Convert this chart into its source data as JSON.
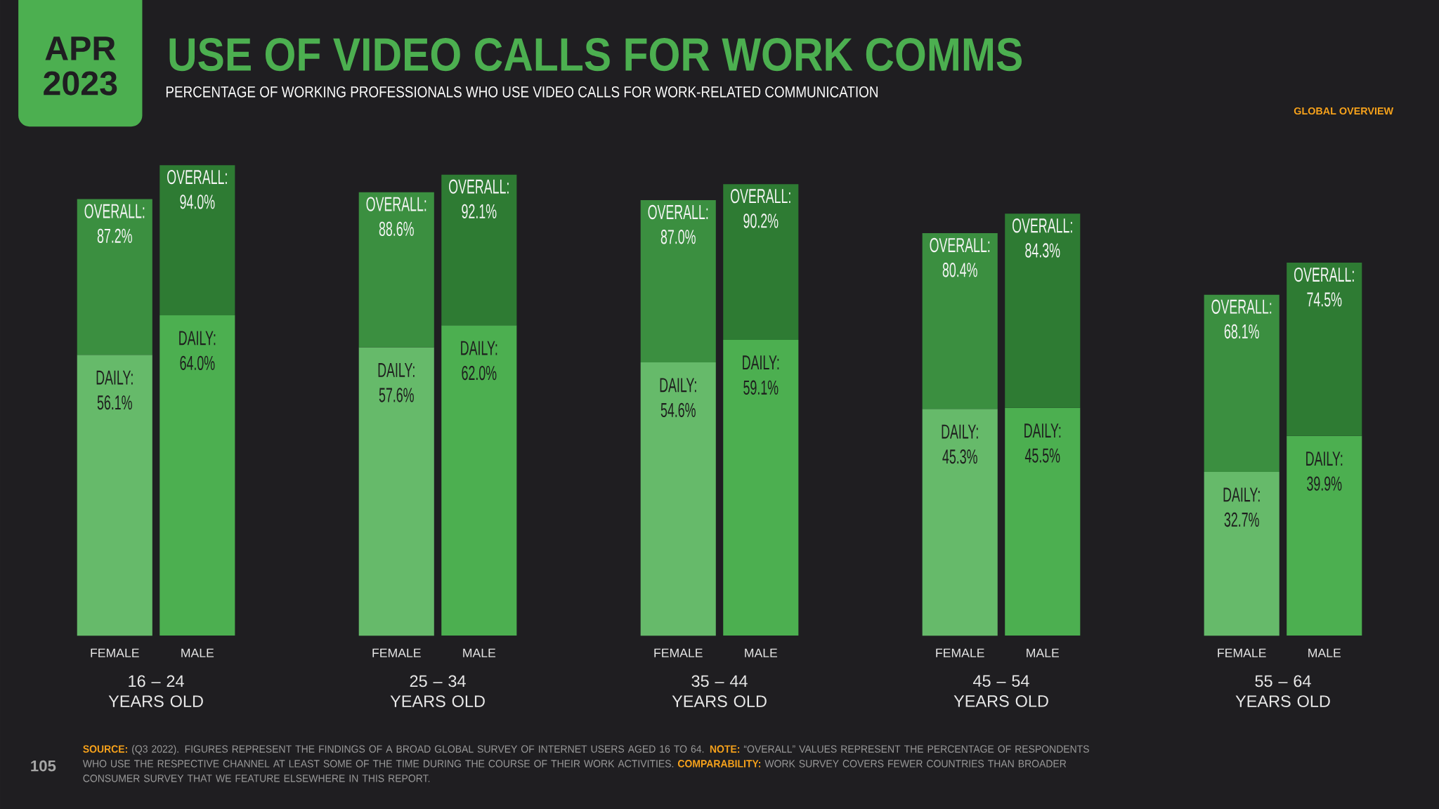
{
  "chart_data": [
    {
      "type": "bar",
      "title": "USE OF VIDEO CALLS FOR WORK COMMS",
      "subtitle": "PERCENTAGE OF WORKING PROFESSIONALS WHO USE VIDEO CALLS FOR WORK-RELATED COMMUNICATION",
      "annotations": [
        "APR 2023",
        "GLOBAL OVERVIEW",
        "**SOURCE:** (Q3 2022). FIGURES REPRESENT THE FINDINGS OF A BROAD GLOBAL SURVEY OF INTERNET USERS AGED 16 TO 64. **NOTE:** “OVERALL” VALUES REPRESENT THE PERCENTAGE OF RESPONDENTS WHO USE THE RESPECTIVE CHANNEL AT LEAST SOME OF THE TIME DURING THE COURSE OF THEIR WORK ACTIVITIES. **COMPARABILITY:** WORK SURVEY COVERS FEWER COUNTRIES THAN BROADER CONSUMER SURVEY THAT WE FEATURE ELSEWHERE IN THIS REPORT.",
        "105"
      ],
      "categories": [
        "FEMALE",
        "MALE"
      ],
      "xlabel": "16 – 24 YEARS OLD",
      "tick_labels": "x",
      "stacked": true,
      "series": [
        {
          "name": "DAILY:",
          "colors": [
            "#66ba6a",
            "#4caf50"
          ],
          "values": [
            56.1,
            64.0
          ],
          "value_labels": [
            "56.1%",
            "64.0%"
          ]
        },
        {
          "colors": [
            "#3b8f40",
            "#2e7b33"
          ],
          "values": [
            31.1,
            30.0
          ]
        }
      ],
      "totals": [
        "OVERALL: 87.2%",
        "OVERALL: 94.0%"
      ]
    },
    {
      "type": "bar",
      "categories": [
        "FEMALE",
        "MALE"
      ],
      "xlabel": "25 – 34 YEARS OLD",
      "tick_labels": "x",
      "stacked": true,
      "series": [
        {
          "name": "DAILY:",
          "colors": [
            "#66ba6a",
            "#4caf50"
          ],
          "values": [
            57.6,
            62.0
          ],
          "value_labels": [
            "57.6%",
            "62.0%"
          ]
        },
        {
          "colors": [
            "#3b8f40",
            "#2e7b33"
          ],
          "values": [
            31.0,
            30.1
          ]
        }
      ],
      "totals": [
        "OVERALL: 88.6%",
        "OVERALL: 92.1%"
      ]
    },
    {
      "type": "bar",
      "categories": [
        "FEMALE",
        "MALE"
      ],
      "xlabel": "35 – 44 YEARS OLD",
      "tick_labels": "x",
      "stacked": true,
      "series": [
        {
          "name": "DAILY:",
          "colors": [
            "#66ba6a",
            "#4caf50"
          ],
          "values": [
            54.6,
            59.1
          ],
          "value_labels": [
            "54.6%",
            "59.1%"
          ]
        },
        {
          "colors": [
            "#3b8f40",
            "#2e7b33"
          ],
          "values": [
            32.4,
            31.1
          ]
        }
      ],
      "totals": [
        "OVERALL: 87.0%",
        "OVERALL: 90.2%"
      ]
    },
    {
      "type": "bar",
      "categories": [
        "FEMALE",
        "MALE"
      ],
      "xlabel": "45 – 54 YEARS OLD",
      "tick_labels": "x",
      "stacked": true,
      "series": [
        {
          "name": "DAILY:",
          "colors": [
            "#66ba6a",
            "#4caf50"
          ],
          "values": [
            45.3,
            45.5
          ],
          "value_labels": [
            "45.3%",
            "45.5%"
          ]
        },
        {
          "colors": [
            "#3b8f40",
            "#2e7b33"
          ],
          "values": [
            35.1,
            38.8
          ]
        }
      ],
      "totals": [
        "OVERALL: 80.4%",
        "OVERALL: 84.3%"
      ]
    },
    {
      "type": "bar",
      "categories": [
        "FEMALE",
        "MALE"
      ],
      "xlabel": "55 – 64 YEARS OLD",
      "tick_labels": "x",
      "stacked": true,
      "series": [
        {
          "name": "DAILY:",
          "colors": [
            "#66ba6a",
            "#4caf50"
          ],
          "values": [
            32.7,
            39.9
          ],
          "value_labels": [
            "32.7%",
            "39.9%"
          ]
        },
        {
          "colors": [
            "#3b8f40",
            "#2e7b33"
          ],
          "values": [
            35.4,
            34.6
          ]
        }
      ],
      "totals": [
        "OVERALL: 68.1%",
        "OVERALL: 74.5%"
      ]
    }
  ]
}
